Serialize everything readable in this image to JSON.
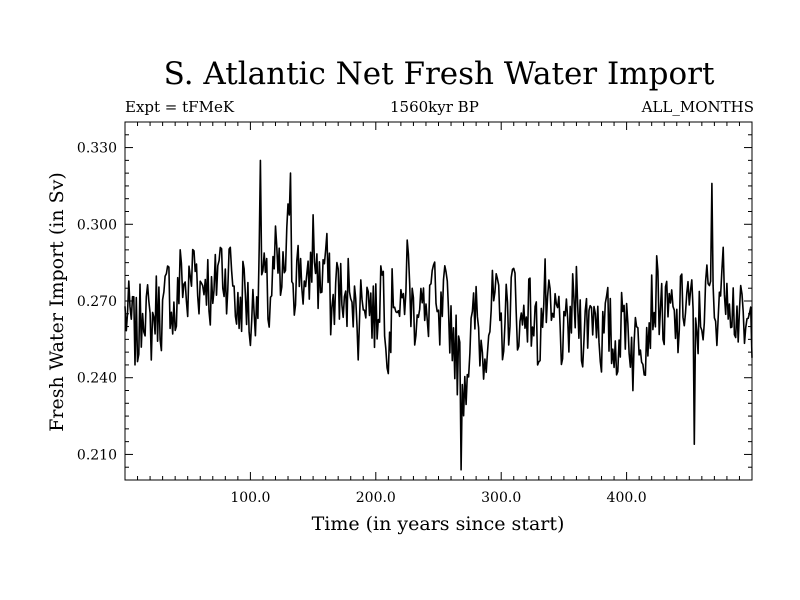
{
  "chart_data": {
    "type": "line",
    "title": "S. Atlantic Net Fresh Water Import",
    "subtitle_left": "Expt = tFMeK",
    "subtitle_center": "1560kyr BP",
    "subtitle_right": "ALL_MONTHS",
    "xlabel": "Time (in years since start)",
    "ylabel": "Fresh Water Import (in Sv)",
    "xlim": [
      0,
      500
    ],
    "ylim": [
      0.2,
      0.34
    ],
    "xticks": [
      100,
      200,
      300,
      400
    ],
    "xtick_labels": [
      "100.0",
      "200.0",
      "300.0",
      "400.0"
    ],
    "yticks": [
      0.21,
      0.24,
      0.27,
      0.3,
      0.33
    ],
    "ytick_labels": [
      "0.210",
      "0.240",
      "0.270",
      "0.300",
      "0.330"
    ],
    "grid": false,
    "series": [
      {
        "name": "Fresh Water Import",
        "x": [
          0,
          5,
          10,
          15,
          20,
          25,
          30,
          35,
          40,
          45,
          50,
          55,
          60,
          65,
          70,
          75,
          80,
          85,
          90,
          95,
          100,
          105,
          110,
          115,
          120,
          125,
          130,
          135,
          140,
          145,
          150,
          155,
          160,
          165,
          170,
          175,
          180,
          185,
          190,
          195,
          200,
          205,
          210,
          215,
          220,
          225,
          230,
          235,
          240,
          245,
          250,
          255,
          260,
          265,
          270,
          275,
          280,
          285,
          290,
          295,
          300,
          305,
          310,
          315,
          320,
          325,
          330,
          335,
          340,
          345,
          350,
          355,
          360,
          365,
          370,
          375,
          380,
          385,
          390,
          395,
          400,
          405,
          410,
          415,
          420,
          425,
          430,
          435,
          440,
          445,
          450,
          455,
          460,
          465,
          470,
          475,
          480,
          485,
          490,
          495,
          500
        ],
        "values": [
          0.265,
          0.262,
          0.255,
          0.272,
          0.258,
          0.268,
          0.264,
          0.276,
          0.262,
          0.283,
          0.27,
          0.287,
          0.275,
          0.281,
          0.266,
          0.289,
          0.279,
          0.284,
          0.263,
          0.277,
          0.261,
          0.274,
          0.279,
          0.268,
          0.286,
          0.273,
          0.296,
          0.278,
          0.285,
          0.268,
          0.294,
          0.275,
          0.288,
          0.265,
          0.28,
          0.262,
          0.283,
          0.258,
          0.276,
          0.27,
          0.262,
          0.282,
          0.253,
          0.278,
          0.26,
          0.285,
          0.264,
          0.274,
          0.258,
          0.281,
          0.255,
          0.27,
          0.262,
          0.248,
          0.237,
          0.252,
          0.266,
          0.249,
          0.262,
          0.271,
          0.258,
          0.265,
          0.276,
          0.257,
          0.27,
          0.263,
          0.255,
          0.272,
          0.258,
          0.266,
          0.251,
          0.263,
          0.27,
          0.258,
          0.264,
          0.269,
          0.254,
          0.262,
          0.25,
          0.258,
          0.266,
          0.248,
          0.26,
          0.255,
          0.268,
          0.274,
          0.262,
          0.266,
          0.258,
          0.27,
          0.272,
          0.258,
          0.264,
          0.274,
          0.262,
          0.276,
          0.28,
          0.268,
          0.263,
          0.256,
          0.262
        ],
        "annotated_extremes": [
          {
            "x": 108,
            "y": 0.325
          },
          {
            "x": 132,
            "y": 0.32
          },
          {
            "x": 268,
            "y": 0.204
          },
          {
            "x": 454,
            "y": 0.214
          },
          {
            "x": 468,
            "y": 0.316
          }
        ]
      }
    ]
  }
}
